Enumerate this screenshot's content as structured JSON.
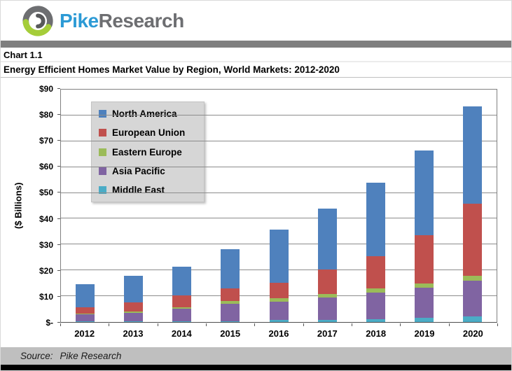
{
  "header": {
    "brand_primary": "Pike",
    "brand_secondary": "Research",
    "brand_blue": "#2C9AD5",
    "brand_gray": "#6D6E71",
    "logo_green": "#A5CD39"
  },
  "chart_label": "Chart 1.1",
  "title": "Energy Efficient Homes Market Value by Region, World Markets: 2012-2020",
  "footer": {
    "source_prefix": "Source:",
    "source_value": "Pike Research"
  },
  "chart_data": {
    "type": "bar",
    "stacked": true,
    "title": "Energy Efficient Homes Market Value by Region, World Markets: 2012-2020",
    "xlabel": "",
    "ylabel": "($ Billions)",
    "ylim": [
      0,
      90
    ],
    "ytick_step": 10,
    "ytick_labels": [
      "$-",
      "$10",
      "$20",
      "$30",
      "$40",
      "$50",
      "$60",
      "$70",
      "$80",
      "$90"
    ],
    "grid": true,
    "legend_position": "upper-left-inside",
    "categories": [
      "2012",
      "2013",
      "2014",
      "2015",
      "2016",
      "2017",
      "2018",
      "2019",
      "2020"
    ],
    "series": [
      {
        "name": "North America",
        "color": "#4F81BD",
        "values": [
          9.1,
          10.2,
          11.1,
          15.1,
          20.6,
          23.7,
          28.3,
          32.8,
          37.9
        ]
      },
      {
        "name": "European Union",
        "color": "#C0504D",
        "values": [
          2.3,
          3.4,
          4.4,
          4.9,
          6.1,
          9.4,
          12.6,
          18.8,
          27.8
        ]
      },
      {
        "name": "Eastern Europe",
        "color": "#9BBB59",
        "values": [
          0.4,
          0.6,
          0.7,
          1.1,
          1.3,
          1.3,
          1.6,
          1.7,
          2.0
        ]
      },
      {
        "name": "Asia Pacific",
        "color": "#8064A2",
        "values": [
          2.6,
          3.3,
          4.7,
          6.6,
          7.1,
          8.8,
          10.3,
          11.7,
          13.6
        ]
      },
      {
        "name": "Middle East",
        "color": "#4BACC6",
        "values": [
          0.3,
          0.3,
          0.4,
          0.4,
          0.7,
          0.8,
          1.1,
          1.5,
          2.3
        ]
      }
    ],
    "stack_order_bottom_to_top": [
      "Middle East",
      "Asia Pacific",
      "Eastern Europe",
      "European Union",
      "North America"
    ],
    "totals": [
      14.7,
      17.8,
      21.3,
      28.1,
      35.8,
      44.0,
      53.9,
      66.5,
      83.6
    ]
  }
}
